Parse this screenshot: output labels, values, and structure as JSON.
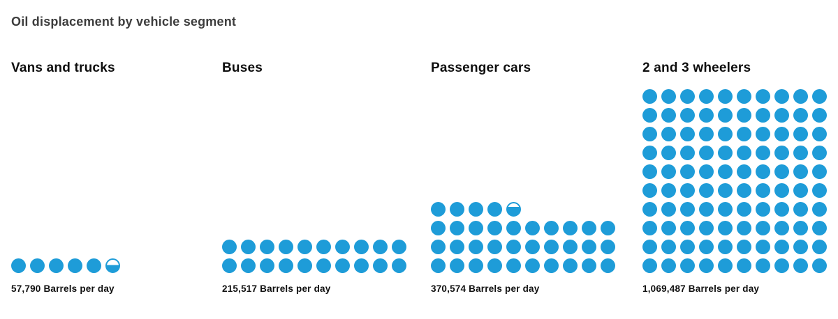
{
  "chart_data": {
    "type": "bar",
    "variant": "pictogram-unit-chart",
    "title": "Oil displacement by vehicle segment",
    "unit": "Barrels per day",
    "legend": "none",
    "grid": "off",
    "dots_per_row": 10,
    "approx_value_per_dot": 10695,
    "categories": [
      "Vans and trucks",
      "Buses",
      "Passenger cars",
      "2 and 3 wheelers"
    ],
    "values": [
      57790,
      215517,
      370574,
      1069487
    ],
    "segments": [
      {
        "label": "Vans and trucks",
        "value": 57790,
        "value_label": "57,790 Barrels per day",
        "full_dots": 5,
        "partial_dot_fill": 0.55
      },
      {
        "label": "Buses",
        "value": 215517,
        "value_label": "215,517 Barrels per day",
        "full_dots": 20,
        "partial_dot_fill": 0
      },
      {
        "label": "Passenger cars",
        "value": 370574,
        "value_label": "370,574 Barrels per day",
        "full_dots": 34,
        "partial_dot_fill": 0.72
      },
      {
        "label": "2 and 3 wheelers",
        "value": 1069487,
        "value_label": "1,069,487 Barrels per day",
        "full_dots": 100,
        "partial_dot_fill": 0
      }
    ]
  },
  "colors": {
    "dot": "#1E9CD8",
    "partial_dot_background": "#ffffff",
    "title_text": "#3d3d3d",
    "header_text": "#0e0e0e",
    "label_text": "#101010",
    "background": "#ffffff"
  }
}
